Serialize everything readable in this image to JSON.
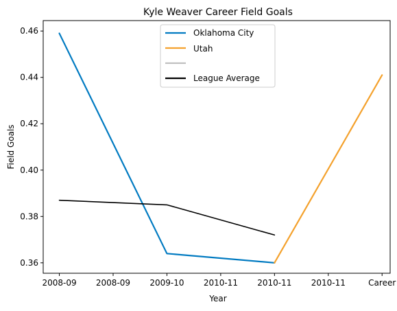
{
  "chart_data": {
    "type": "line",
    "title": "Kyle Weaver Career Field Goals",
    "xlabel": "Year",
    "ylabel": "Field Goals",
    "x_tick_labels": [
      "2008-09",
      "2008-09",
      "2009-10",
      "2010-11",
      "2010-11",
      "2010-11",
      "Career"
    ],
    "x_positions": [
      0,
      1,
      2,
      3,
      4,
      5,
      6
    ],
    "xlim": [
      -0.3,
      6.15
    ],
    "ylim": [
      0.3555,
      0.4645
    ],
    "y_ticks": [
      0.36,
      0.38,
      0.4,
      0.42,
      0.44,
      0.46
    ],
    "y_tick_labels": [
      "0.36",
      "0.38",
      "0.40",
      "0.42",
      "0.44",
      "0.46"
    ],
    "legend_position": "top-center",
    "series": [
      {
        "name": "Oklahoma City",
        "color": "#007AC1",
        "x": [
          0,
          2,
          4
        ],
        "values": [
          0.459,
          0.364,
          0.36
        ]
      },
      {
        "name": "Utah",
        "color": "#F4A12C",
        "x": [
          4,
          6
        ],
        "values": [
          0.36,
          0.441
        ]
      },
      {
        "name": "",
        "color": "#BFBFBF",
        "x": [],
        "values": []
      },
      {
        "name": "League Average",
        "color": "#000000",
        "x": [
          0,
          2,
          4
        ],
        "values": [
          0.387,
          0.385,
          0.372
        ]
      }
    ]
  }
}
